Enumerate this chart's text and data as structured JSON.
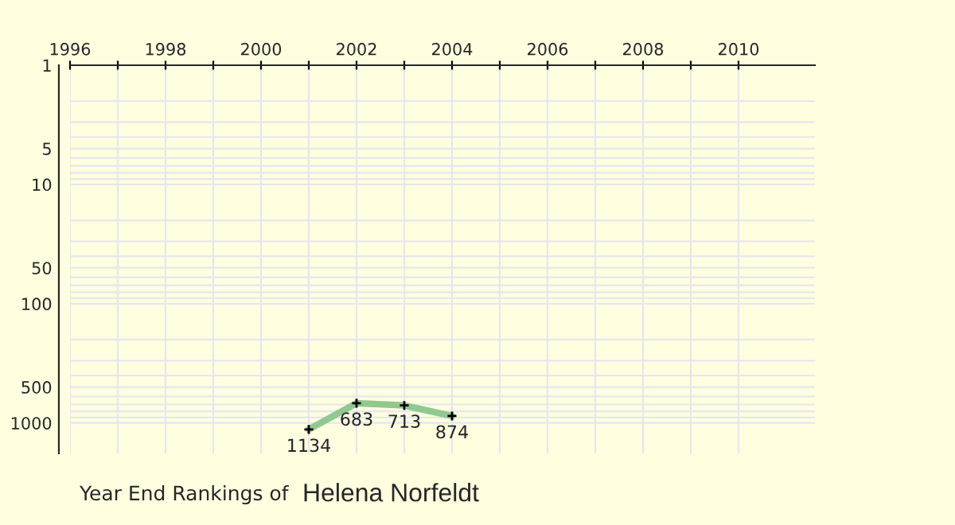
{
  "chart_data": {
    "type": "line",
    "title": "Year End Rankings of",
    "subtitle": "Helena Norfeldt",
    "x": [
      2001,
      2002,
      2003,
      2004
    ],
    "series": [
      {
        "color": "#90c890",
        "values": [
          1134,
          683,
          713,
          874
        ]
      }
    ],
    "xlim": [
      1996,
      2011.6
    ],
    "ylim": [
      1800,
      1
    ],
    "xticks": [
      1996,
      {
        "value": 1997,
        "label": null
      },
      1998,
      {
        "value": 1999,
        "label": null
      },
      2000,
      {
        "value": 2001,
        "label": null
      },
      2002,
      {
        "value": 2003,
        "label": null
      },
      2004,
      {
        "value": 2005,
        "label": null
      },
      2006,
      {
        "value": 2007,
        "label": null
      },
      2008,
      {
        "value": 2009,
        "label": null
      },
      2010
    ],
    "yticks": [
      1,
      5,
      10,
      50,
      100,
      500,
      1000
    ],
    "log": "y",
    "grid": true,
    "marker": "cross",
    "line_style": "solid",
    "data_labels": true
  }
}
